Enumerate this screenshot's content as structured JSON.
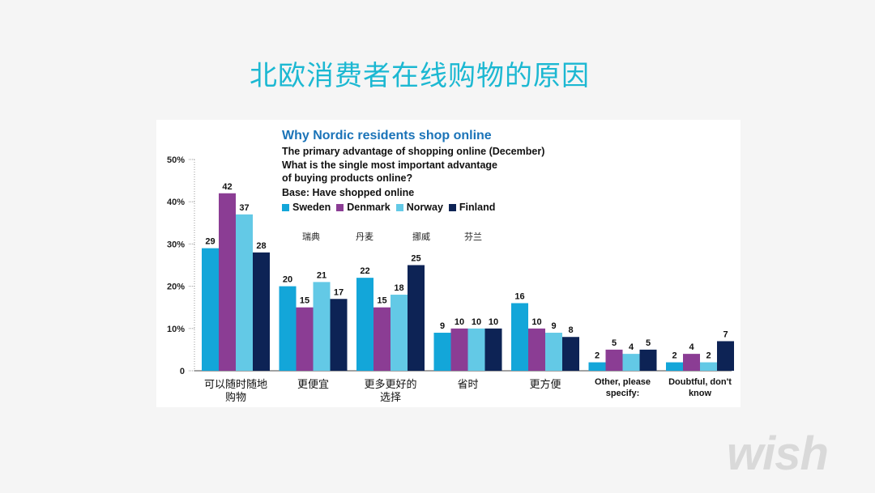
{
  "slide": {
    "title": "北欧消费者在线购物的原因",
    "watermark": "wish"
  },
  "chart_data": {
    "type": "bar",
    "title": "Why Nordic residents shop online",
    "subtitle_lines": [
      "The primary advantage of shopping online (December)",
      "What is the single most important advantage",
      "of buying products online?"
    ],
    "base": "Base: Have shopped online",
    "legend_cn": [
      "瑞典",
      "丹麦",
      "挪威",
      "芬兰"
    ],
    "categories": [
      [
        "可以随时随地",
        "购物"
      ],
      [
        "更便宜"
      ],
      [
        "更多更好的",
        "选择"
      ],
      [
        "省时"
      ],
      [
        "更方便"
      ],
      [
        "Other, please",
        "specify:"
      ],
      [
        "Doubtful, don't",
        "know"
      ]
    ],
    "series": [
      {
        "name": "Sweden",
        "color": "#13a6d9",
        "values": [
          29,
          20,
          22,
          9,
          16,
          2,
          2
        ]
      },
      {
        "name": "Denmark",
        "color": "#8b3d94",
        "values": [
          42,
          15,
          15,
          10,
          10,
          5,
          4
        ]
      },
      {
        "name": "Norway",
        "color": "#63c9e6",
        "values": [
          37,
          21,
          18,
          10,
          9,
          4,
          2
        ]
      },
      {
        "name": "Finland",
        "color": "#0d2355",
        "values": [
          28,
          17,
          25,
          10,
          8,
          5,
          7
        ]
      }
    ],
    "ylim": [
      0,
      50
    ],
    "yticks": [
      "0",
      "10%",
      "20%",
      "30%",
      "40%",
      "50%"
    ],
    "grid": false,
    "legend_position": "top"
  }
}
